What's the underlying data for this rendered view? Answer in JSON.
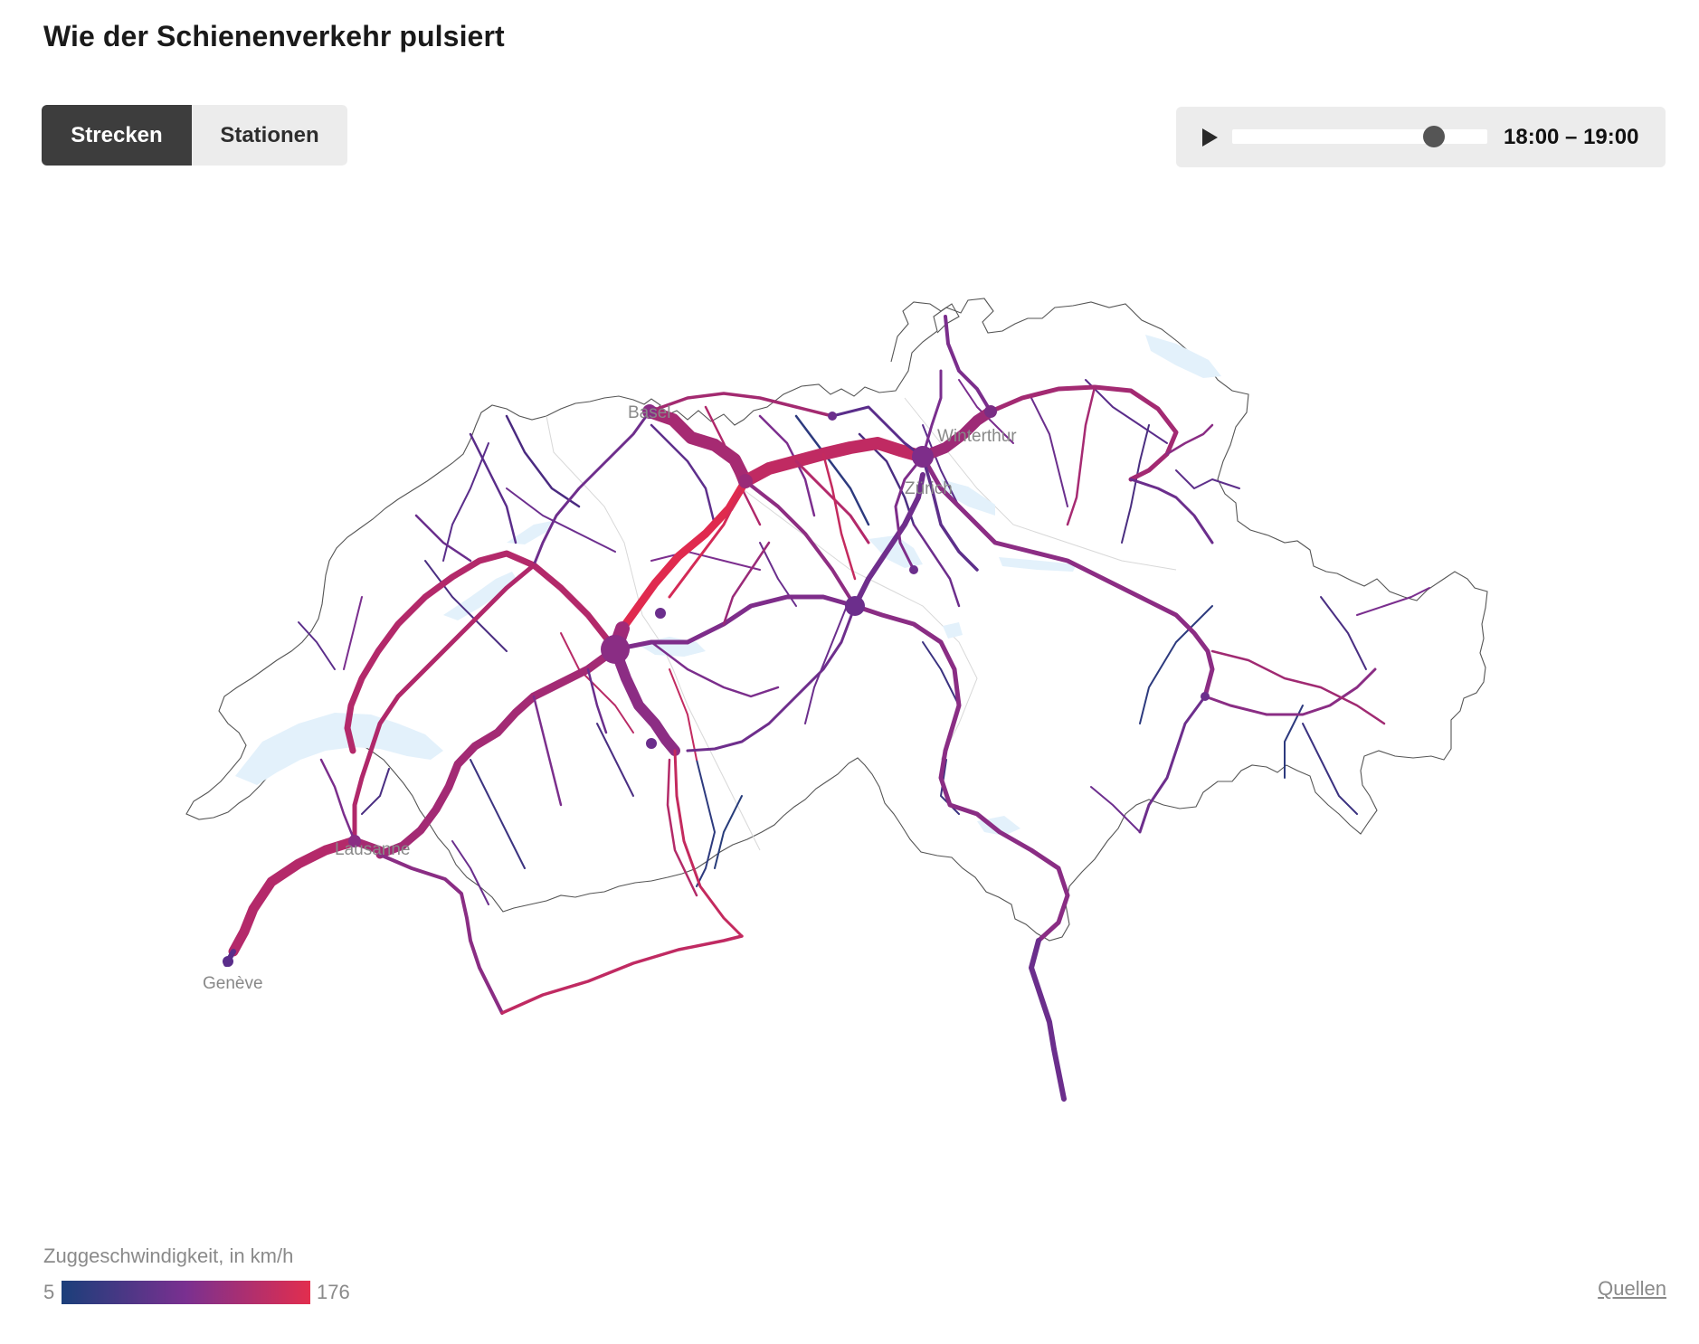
{
  "title": "Wie der Schienenverkehr pulsiert",
  "tabs": [
    {
      "label": "Strecken",
      "active": true
    },
    {
      "label": "Stationen",
      "active": false
    }
  ],
  "player": {
    "time_label": "18:00 – 19:00",
    "play_icon": "play-icon",
    "progress": 0.79
  },
  "map": {
    "cities": [
      "Basel",
      "Winterthur",
      "Zürich",
      "Lausanne",
      "Genève"
    ]
  },
  "legend": {
    "title": "Zuggeschwindigkeit, in km/h",
    "min": "5",
    "max": "176",
    "color_low": "#1b3f7a",
    "color_mid": "#7a3090",
    "color_high": "#e22e4e"
  },
  "sources_label": "Quellen"
}
